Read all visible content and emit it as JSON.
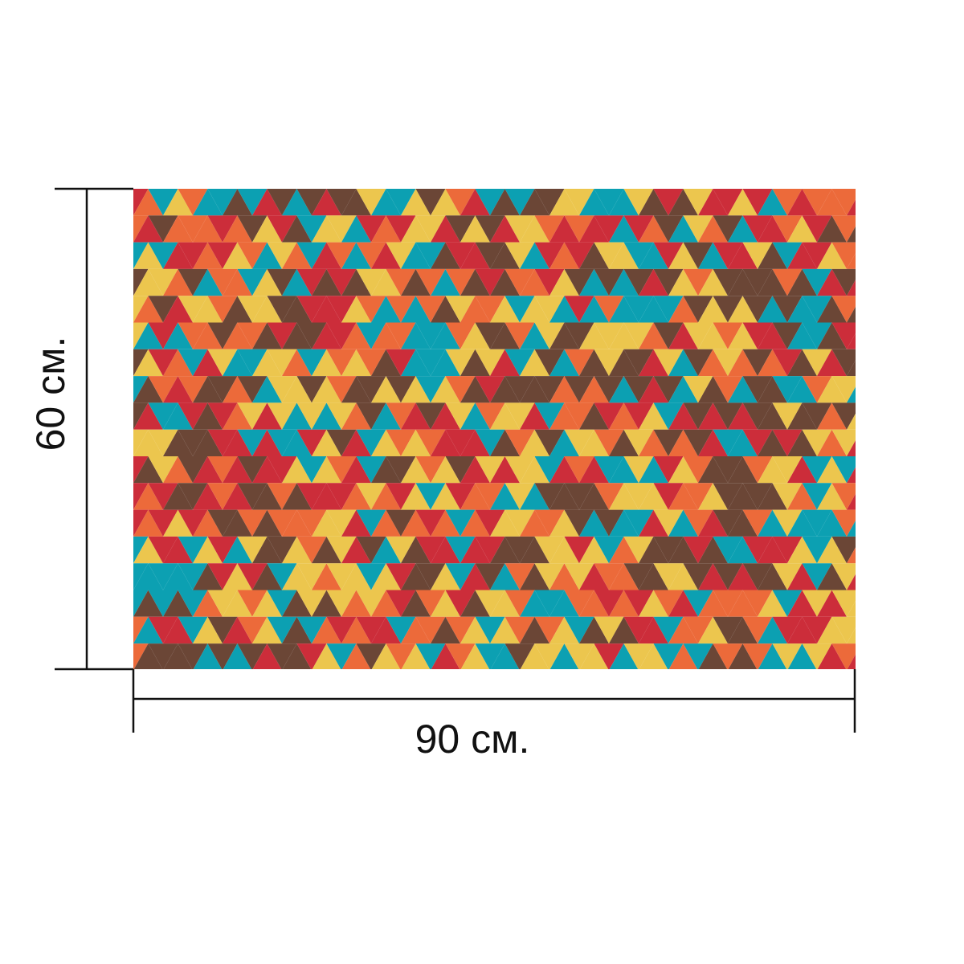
{
  "product": {
    "width_label": "90 см.",
    "height_label": "60 см.",
    "width_value": 90,
    "height_value": 60,
    "unit": "см"
  },
  "pattern": {
    "type": "triangles",
    "colors": [
      "#6b4636",
      "#cc2d3a",
      "#ec6a3a",
      "#ecc64e",
      "#0ca0b2"
    ]
  },
  "dimension_line_color": "#111111"
}
